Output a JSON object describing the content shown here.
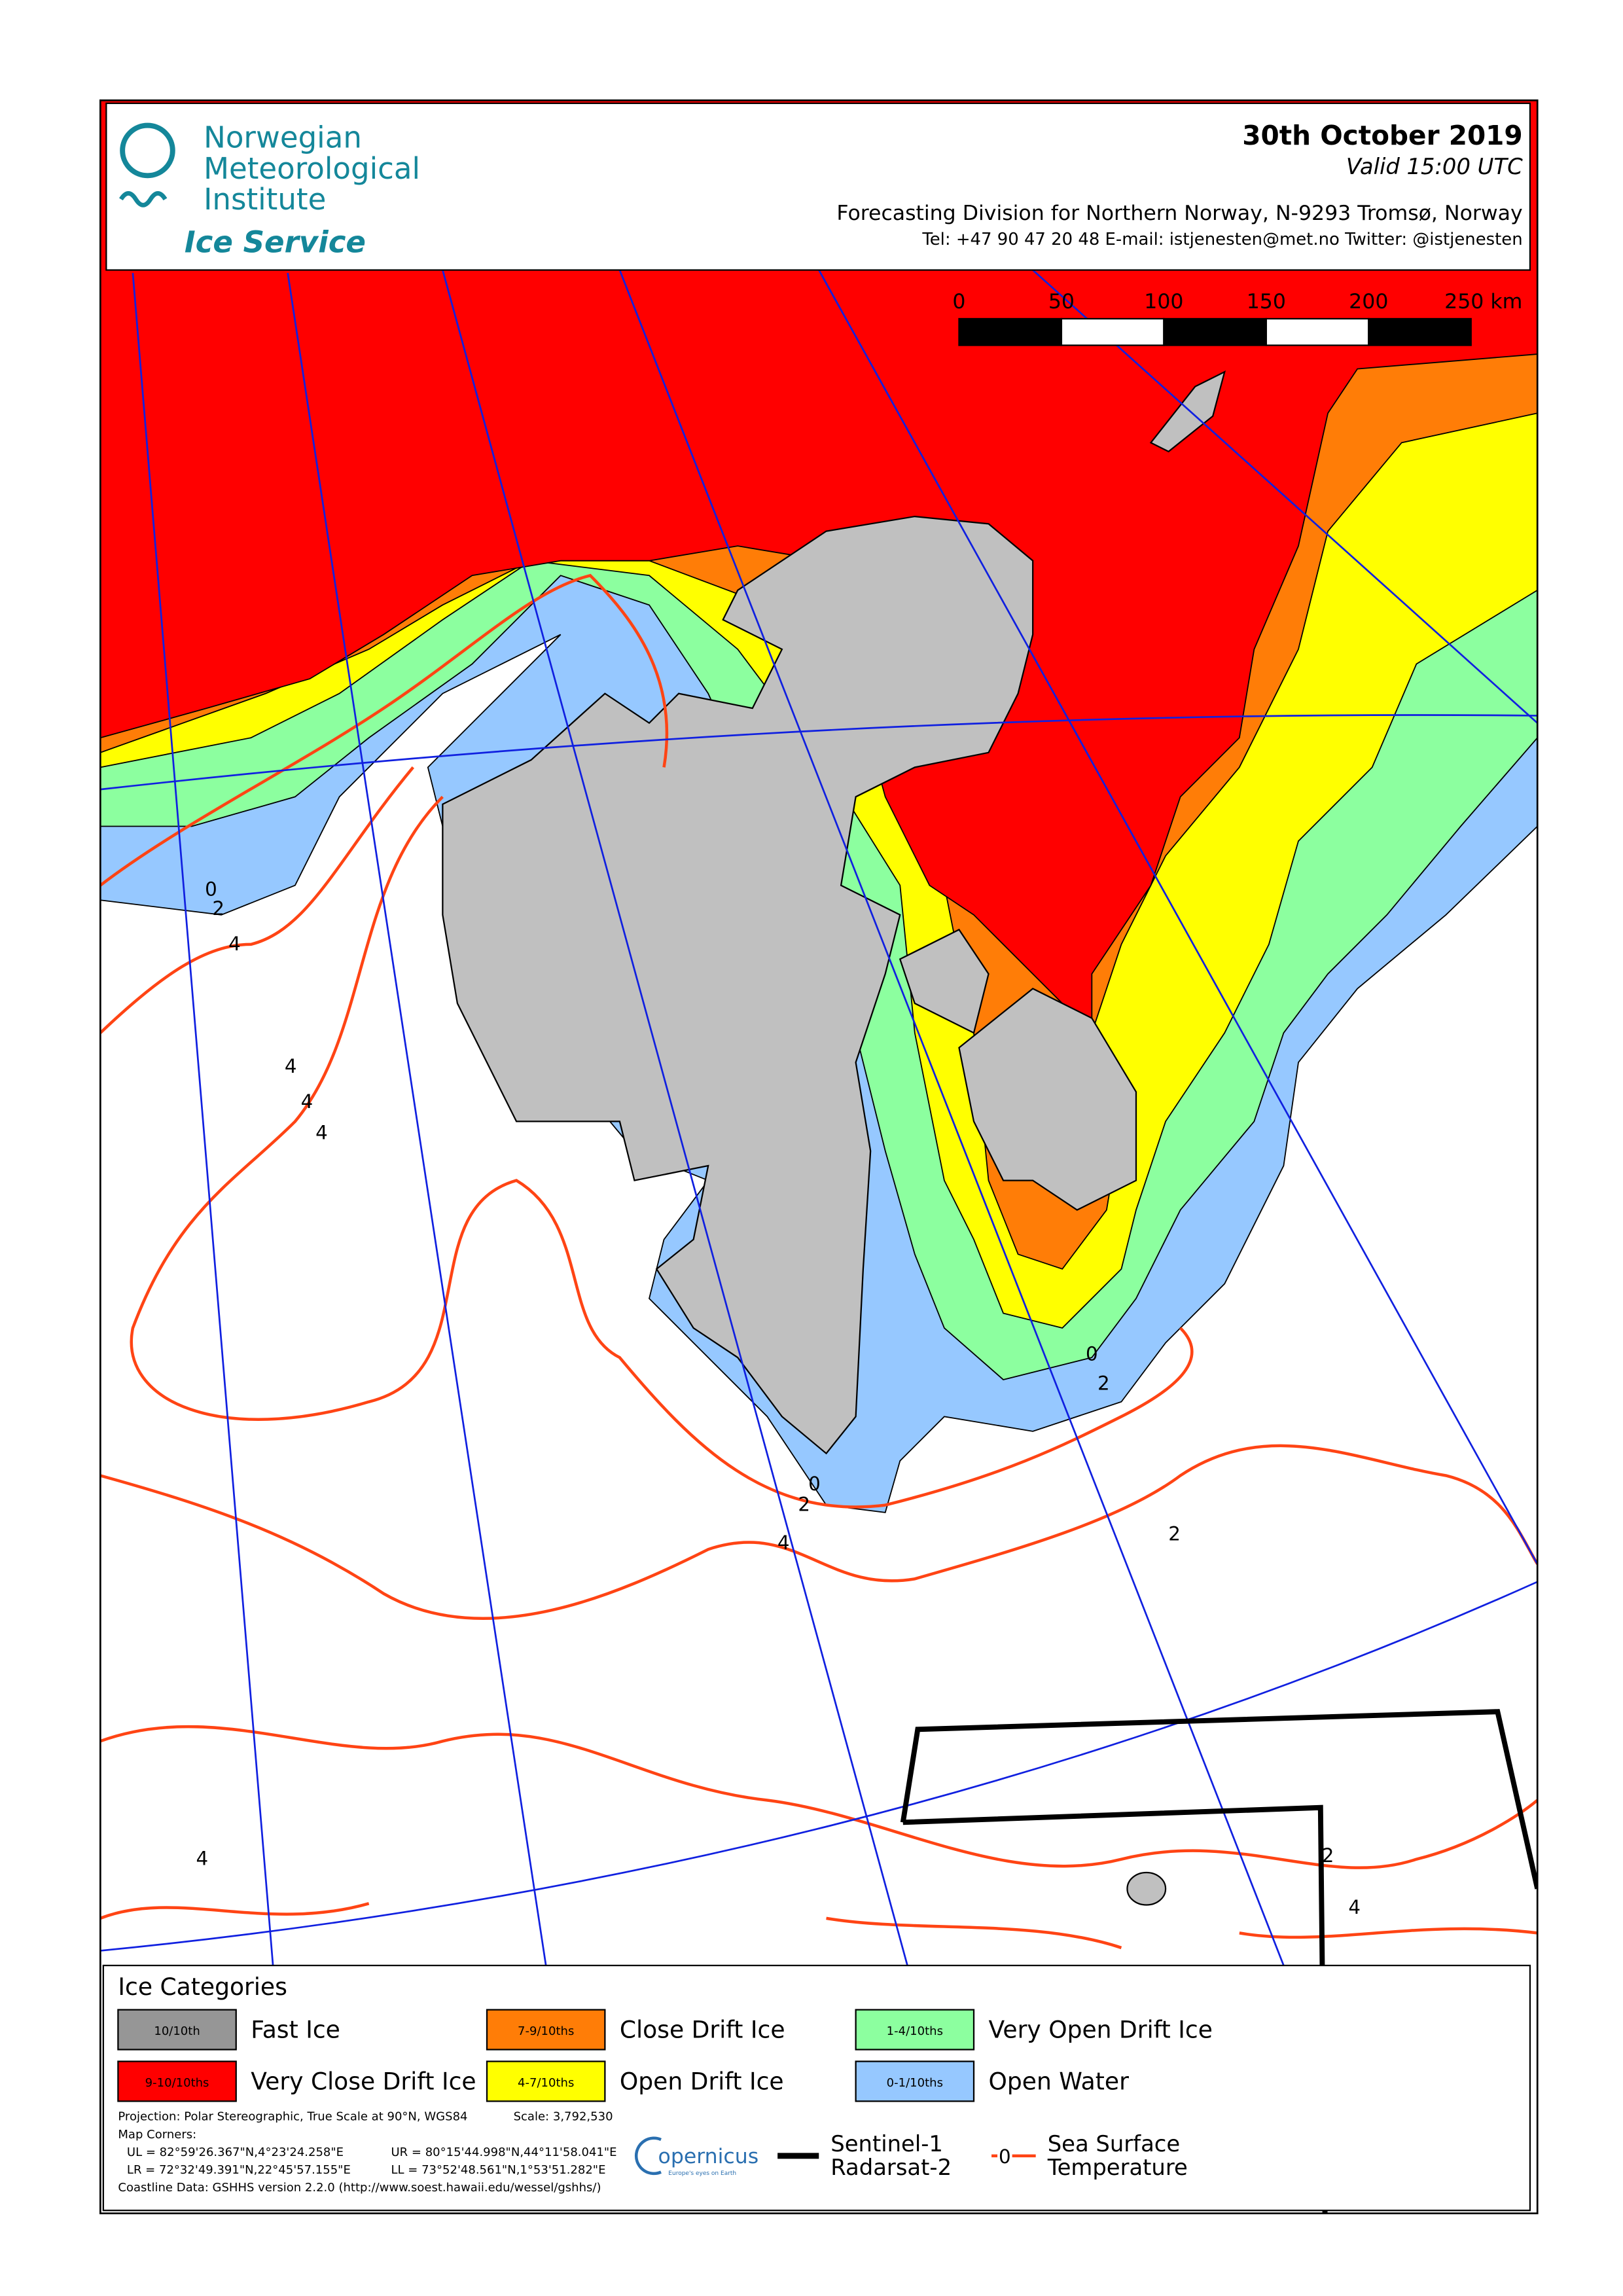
{
  "header": {
    "org": [
      "Norwegian",
      "Meteorological",
      "Institute"
    ],
    "service": "Ice Service",
    "date": "30th October 2019",
    "valid": "Valid 15:00 UTC",
    "division": "Forecasting Division for Northern Norway, N-9293 Tromsø, Norway",
    "contact": "Tel: +47 90 47 20 48   E-mail: istjenesten@met.no   Twitter: @istjenesten"
  },
  "scale_bar": {
    "ticks": [
      "0",
      "50",
      "100",
      "150",
      "200",
      "250 km"
    ]
  },
  "sst_labels": [
    "0",
    "2",
    "4",
    "4",
    "4",
    "4",
    "0",
    "2",
    "4",
    "0",
    "2",
    "2",
    "4",
    "2",
    "4"
  ],
  "legend": {
    "title": "Ice Categories",
    "items": [
      {
        "swatch": "10/10th",
        "label": "Fast Ice",
        "color": "#969696"
      },
      {
        "swatch": "7-9/10ths",
        "label": "Close Drift Ice",
        "color": "#ff7d07"
      },
      {
        "swatch": "1-4/10ths",
        "label": "Very Open Drift Ice",
        "color": "#8cff9f"
      },
      {
        "swatch": "9-10/10ths",
        "label": "Very Close Drift Ice",
        "color": "#ff0000"
      },
      {
        "swatch": "4-7/10ths",
        "label": "Open Drift Ice",
        "color": "#ffff00"
      },
      {
        "swatch": "0-1/10ths",
        "label": "Open Water",
        "color": "#96c8ff"
      }
    ],
    "notes": [
      "Projection: Polar Stereographic, True Scale at 90°N, WGS84",
      "Scale: 3,792,530",
      "Map Corners:",
      "UL = 82°59'26.367\"N,4°23'24.258\"E",
      "UR = 80°15'44.998\"N,44°11'58.041\"E",
      "LR = 72°32'49.391\"N,22°45'57.155\"E",
      "LL = 73°52'48.561\"N,1°53'51.282\"E",
      "Coastline Data: GSHHS version 2.2.0 (http://www.soest.hawaii.edu/wessel/gshhs/)"
    ],
    "copernicus": "opernicus",
    "copernicus_tag": "Europe's eyes on Earth",
    "satellite": [
      "Sentinel-1",
      "Radarsat-2"
    ],
    "sst_sample": "0",
    "sst": [
      "Sea Surface",
      "Temperature"
    ]
  }
}
